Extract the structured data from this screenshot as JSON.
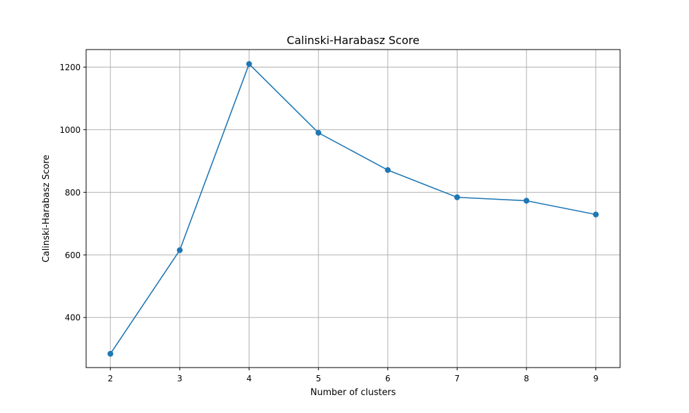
{
  "chart_data": {
    "type": "line",
    "title": "Calinski-Harabasz Score",
    "xlabel": "Number of clusters",
    "ylabel": "Calinski-Harabasz Score",
    "x": [
      2,
      3,
      4,
      5,
      6,
      7,
      8,
      9
    ],
    "series": [
      {
        "values": [
          284,
          615,
          1210,
          990,
          871,
          784,
          773,
          729
        ],
        "color": "#1f77b4",
        "marker": "circle"
      }
    ],
    "xlim": [
      1.65,
      9.35
    ],
    "ylim": [
      240,
      1256
    ],
    "xticks": [
      2,
      3,
      4,
      5,
      6,
      7,
      8,
      9
    ],
    "yticks": [
      400,
      600,
      800,
      1000,
      1200
    ],
    "grid": true,
    "legend": "none"
  }
}
